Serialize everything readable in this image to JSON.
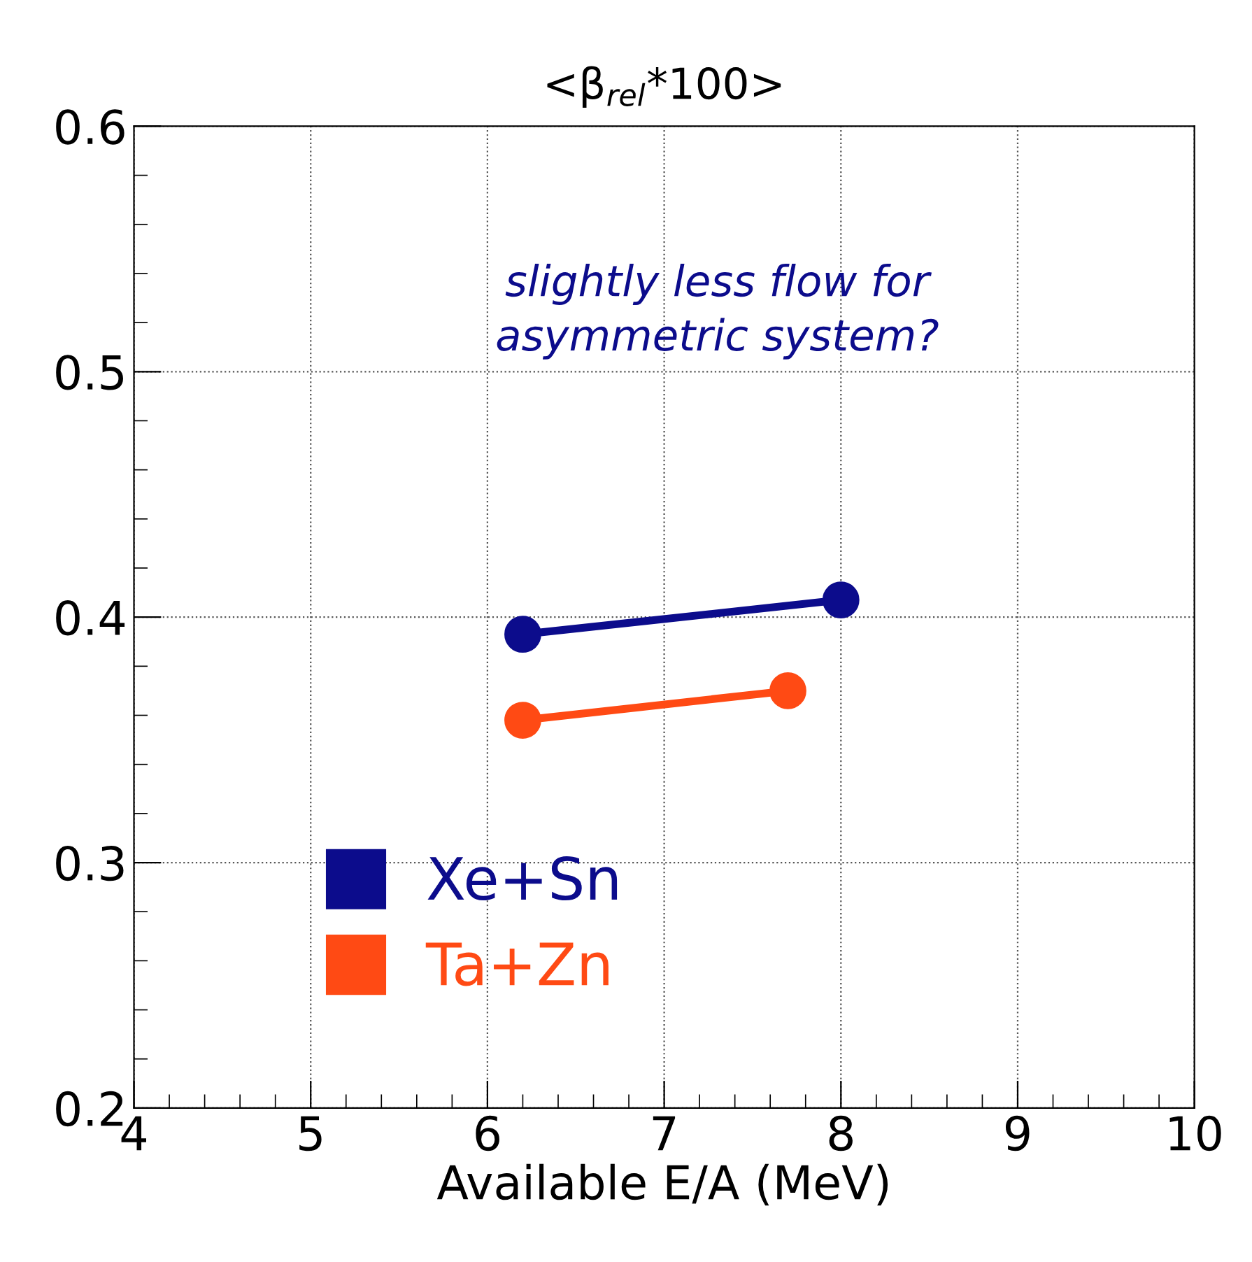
{
  "chart_data": {
    "type": "line",
    "title": "<β$_{rel}$*100>",
    "xlabel": "Available E/A (MeV)",
    "xlim": [
      4,
      10
    ],
    "xticks": [
      4,
      5,
      6,
      7,
      8,
      9,
      10
    ],
    "ylim": [
      0.2,
      0.6
    ],
    "yticks": [
      0.2,
      0.3,
      0.4,
      0.5,
      0.6
    ],
    "grid": true,
    "marker": "circle",
    "line_style": "solid",
    "legend": "bottom left",
    "annotations": [
      "slightly less flow for\nasymmetric system?"
    ],
    "series": [
      {
        "name": "Xe+Sn",
        "color": "#0c0c8c",
        "x": [
          6.2,
          8.0
        ],
        "values": [
          0.393,
          0.407
        ]
      },
      {
        "name": "Ta+Zn",
        "color": "#ff4a14",
        "x": [
          6.2,
          7.7
        ],
        "values": [
          0.358,
          0.37
        ]
      }
    ]
  }
}
